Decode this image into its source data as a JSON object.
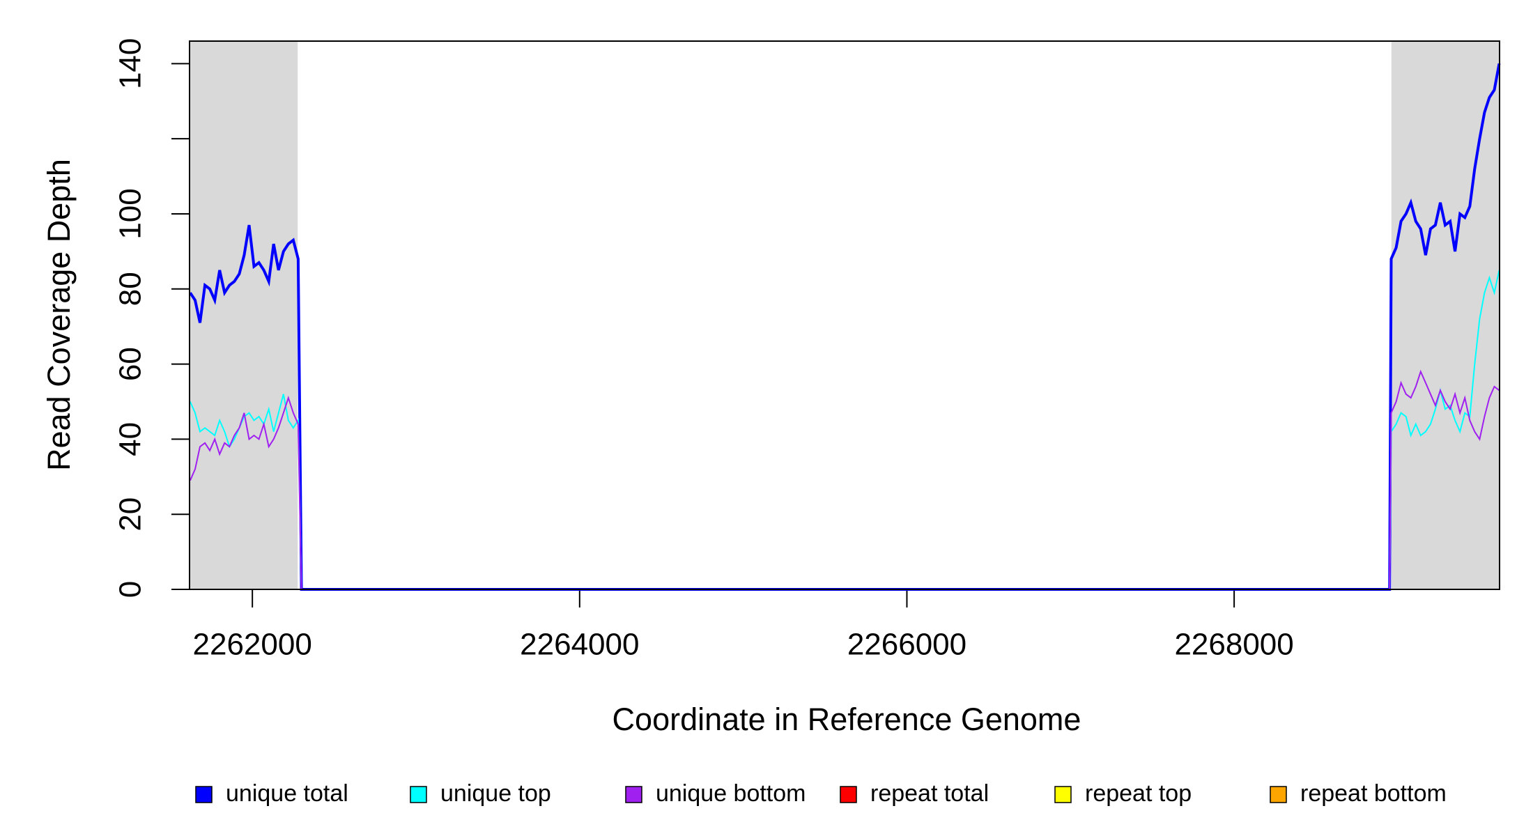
{
  "chart_data": {
    "type": "line",
    "xlabel": "Coordinate in Reference Genome",
    "ylabel": "Read Coverage Depth",
    "xlim": [
      2261616,
      2269622
    ],
    "ylim": [
      0,
      146
    ],
    "xticks": [
      2262000,
      2264000,
      2266000,
      2268000
    ],
    "yticks": [
      0,
      20,
      40,
      60,
      80,
      100,
      140
    ],
    "unlabeled_yticks": [
      120
    ],
    "shaded_regions": [
      [
        2261616,
        2262277
      ],
      [
        2268961,
        2269622
      ]
    ],
    "shade_color": "#d9d9d9",
    "legend": "bottom",
    "x": [
      2261620,
      2261650,
      2261680,
      2261710,
      2261740,
      2261770,
      2261800,
      2261830,
      2261860,
      2261890,
      2261920,
      2261950,
      2261980,
      2262010,
      2262040,
      2262070,
      2262100,
      2262130,
      2262160,
      2262190,
      2262220,
      2262250,
      2262280,
      2262300,
      2268950,
      2268960,
      2268990,
      2269020,
      2269050,
      2269080,
      2269110,
      2269140,
      2269170,
      2269200,
      2269230,
      2269260,
      2269290,
      2269320,
      2269350,
      2269380,
      2269410,
      2269440,
      2269470,
      2269500,
      2269530,
      2269560,
      2269590,
      2269620
    ],
    "series": [
      {
        "name": "unique total",
        "color": "#0000ff",
        "width": 4,
        "values": [
          79,
          77,
          71,
          81,
          80,
          77,
          85,
          79,
          81,
          82,
          84,
          89,
          97,
          86,
          87,
          85,
          82,
          92,
          85,
          90,
          92,
          93,
          88,
          0,
          0,
          88,
          91,
          98,
          100,
          103,
          98,
          96,
          89,
          96,
          97,
          103,
          97,
          98,
          90,
          100,
          99,
          102,
          112,
          120,
          127,
          131,
          133,
          140
        ]
      },
      {
        "name": "unique top",
        "color": "#00ffff",
        "width": 2,
        "values": [
          50,
          47,
          42,
          43,
          42,
          41,
          45,
          42,
          38,
          40,
          43,
          46,
          47,
          45,
          46,
          44,
          48,
          42,
          47,
          52,
          45,
          43,
          45,
          0,
          0,
          42,
          44,
          47,
          46,
          41,
          44,
          41,
          42,
          44,
          48,
          53,
          48,
          49,
          45,
          42,
          47,
          46,
          60,
          72,
          79,
          83,
          79,
          85
        ]
      },
      {
        "name": "unique bottom",
        "color": "#a020f0",
        "width": 2,
        "values": [
          29,
          32,
          38,
          39,
          37,
          40,
          36,
          39,
          38,
          41,
          43,
          47,
          40,
          41,
          40,
          44,
          38,
          40,
          43,
          47,
          51,
          47,
          44,
          0,
          0,
          47,
          50,
          55,
          52,
          51,
          54,
          58,
          55,
          52,
          49,
          53,
          50,
          48,
          52,
          47,
          51,
          45,
          42,
          40,
          46,
          51,
          54,
          53
        ]
      },
      {
        "name": "repeat total",
        "color": "#ff0000",
        "width": 2,
        "values": [
          0,
          0,
          0,
          0,
          0,
          0,
          0,
          0,
          0,
          0,
          0,
          0,
          0,
          0,
          0,
          0,
          0,
          0,
          0,
          0,
          0,
          0,
          0,
          0,
          0,
          0,
          0,
          0,
          0,
          0,
          0,
          0,
          0,
          0,
          0,
          0,
          0,
          0,
          0,
          0,
          0,
          0,
          0,
          0,
          0,
          0,
          0,
          0
        ]
      },
      {
        "name": "repeat top",
        "color": "#ffff00",
        "width": 2,
        "values": [
          0,
          0,
          0,
          0,
          0,
          0,
          0,
          0,
          0,
          0,
          0,
          0,
          0,
          0,
          0,
          0,
          0,
          0,
          0,
          0,
          0,
          0,
          0,
          0,
          0,
          0,
          0,
          0,
          0,
          0,
          0,
          0,
          0,
          0,
          0,
          0,
          0,
          0,
          0,
          0,
          0,
          0,
          0,
          0,
          0,
          0,
          0,
          0
        ]
      },
      {
        "name": "repeat bottom",
        "color": "#ffa500",
        "width": 2,
        "values": [
          0,
          0,
          0,
          0,
          0,
          0,
          0,
          0,
          0,
          0,
          0,
          0,
          0,
          0,
          0,
          0,
          0,
          0,
          0,
          0,
          0,
          0,
          0,
          0,
          0,
          0,
          0,
          0,
          0,
          0,
          0,
          0,
          0,
          0,
          0,
          0,
          0,
          0,
          0,
          0,
          0,
          0,
          0,
          0,
          0,
          0,
          0,
          0
        ]
      }
    ]
  }
}
